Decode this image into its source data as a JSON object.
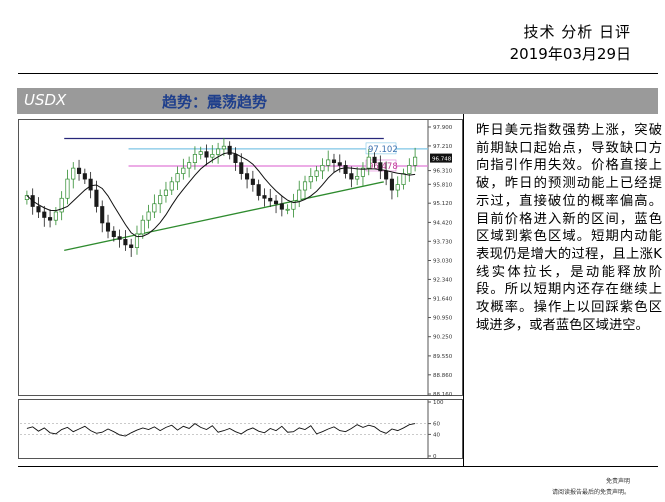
{
  "header": {
    "title": "技术 分析 日评",
    "date": "2019年03月29日"
  },
  "section": {
    "label": "USDX",
    "heading": "趋势：震荡趋势"
  },
  "commentary": "昨日美元指数强势上涨，突破前期缺口起始点，导致缺口方向指引作用失效。价格直接上破，昨日的预测动能上已经提示过，直接破位的概率偏高。目前价格进入新的区间，蓝色区域到紫色区域。短期内动能表现仍是增大的过程，且上涨K线实体拉长，是动能释放阶段。所以短期内还存在继续上攻概率。操作上以回踩紫色区域进多，或者蓝色区域进空。",
  "disclaimer": {
    "line1": "免责声明",
    "line2": "请阅读报告最后的免责声明。"
  },
  "colors": {
    "blue_level": "#7fc6e6",
    "purple_level": "#e07ad8",
    "resistance": "#27277a",
    "support": "#2e8b2e",
    "bull": "#2e8b2e",
    "bear": "#1a1a1a",
    "section_bar": "#9a9a9a",
    "heading": "#1f3f8c"
  },
  "chart_data": {
    "type": "candlestick",
    "ylim": [
      88.16,
      97.9
    ],
    "price_ticks": [
      "97.900",
      "97.210",
      "96.748",
      "96.310",
      "95.810",
      "95.120",
      "94.420",
      "93.730",
      "93.030",
      "92.340",
      "91.640",
      "90.950",
      "90.250",
      "89.550",
      "88.860",
      "88.160"
    ],
    "current_price": "96.748",
    "levels": [
      {
        "name": "blue",
        "value": 97.102,
        "label": "97.102"
      },
      {
        "name": "purple",
        "value": 96.478,
        "label": "96.478"
      }
    ],
    "trendlines": [
      {
        "name": "resistance",
        "from": [
          0.11,
          97.48
        ],
        "to": [
          0.905,
          97.48
        ]
      },
      {
        "name": "support",
        "from": [
          0.11,
          93.4
        ],
        "to": [
          0.905,
          95.9
        ]
      }
    ],
    "close": [
      95.4,
      95.0,
      94.8,
      94.6,
      94.5,
      94.8,
      95.3,
      96.0,
      96.4,
      96.2,
      96.0,
      95.6,
      95.0,
      94.4,
      94.1,
      93.9,
      93.8,
      93.6,
      93.5,
      94.0,
      94.5,
      94.8,
      95.1,
      95.4,
      95.6,
      95.9,
      96.2,
      96.4,
      96.6,
      96.9,
      97.0,
      96.8,
      96.9,
      97.1,
      97.2,
      96.9,
      96.6,
      96.2,
      96.0,
      95.8,
      95.4,
      95.3,
      95.2,
      95.1,
      94.9,
      94.9,
      95.2,
      95.6,
      95.9,
      96.1,
      96.3,
      96.5,
      96.7,
      96.6,
      96.5,
      96.2,
      96.0,
      96.1,
      96.4,
      96.8,
      96.6,
      96.3,
      96.0,
      95.6,
      95.8,
      96.2,
      96.5,
      96.8
    ],
    "oscillator": {
      "ticks": [
        "100",
        "60",
        "40",
        "0"
      ],
      "ylim": [
        0,
        100
      ],
      "values": [
        51,
        54,
        46,
        52,
        43,
        41,
        49,
        53,
        45,
        50,
        55,
        47,
        42,
        44,
        50,
        45,
        39,
        37,
        43,
        48,
        52,
        49,
        54,
        47,
        53,
        57,
        48,
        55,
        51,
        60,
        53,
        49,
        56,
        44,
        47,
        51,
        45,
        41,
        48,
        52,
        46,
        43,
        51,
        47,
        55,
        44,
        45,
        52,
        49,
        56,
        41,
        45,
        50,
        54,
        47,
        45,
        51,
        58,
        53,
        57,
        54,
        46,
        42,
        50,
        47,
        52,
        58,
        60
      ]
    }
  }
}
